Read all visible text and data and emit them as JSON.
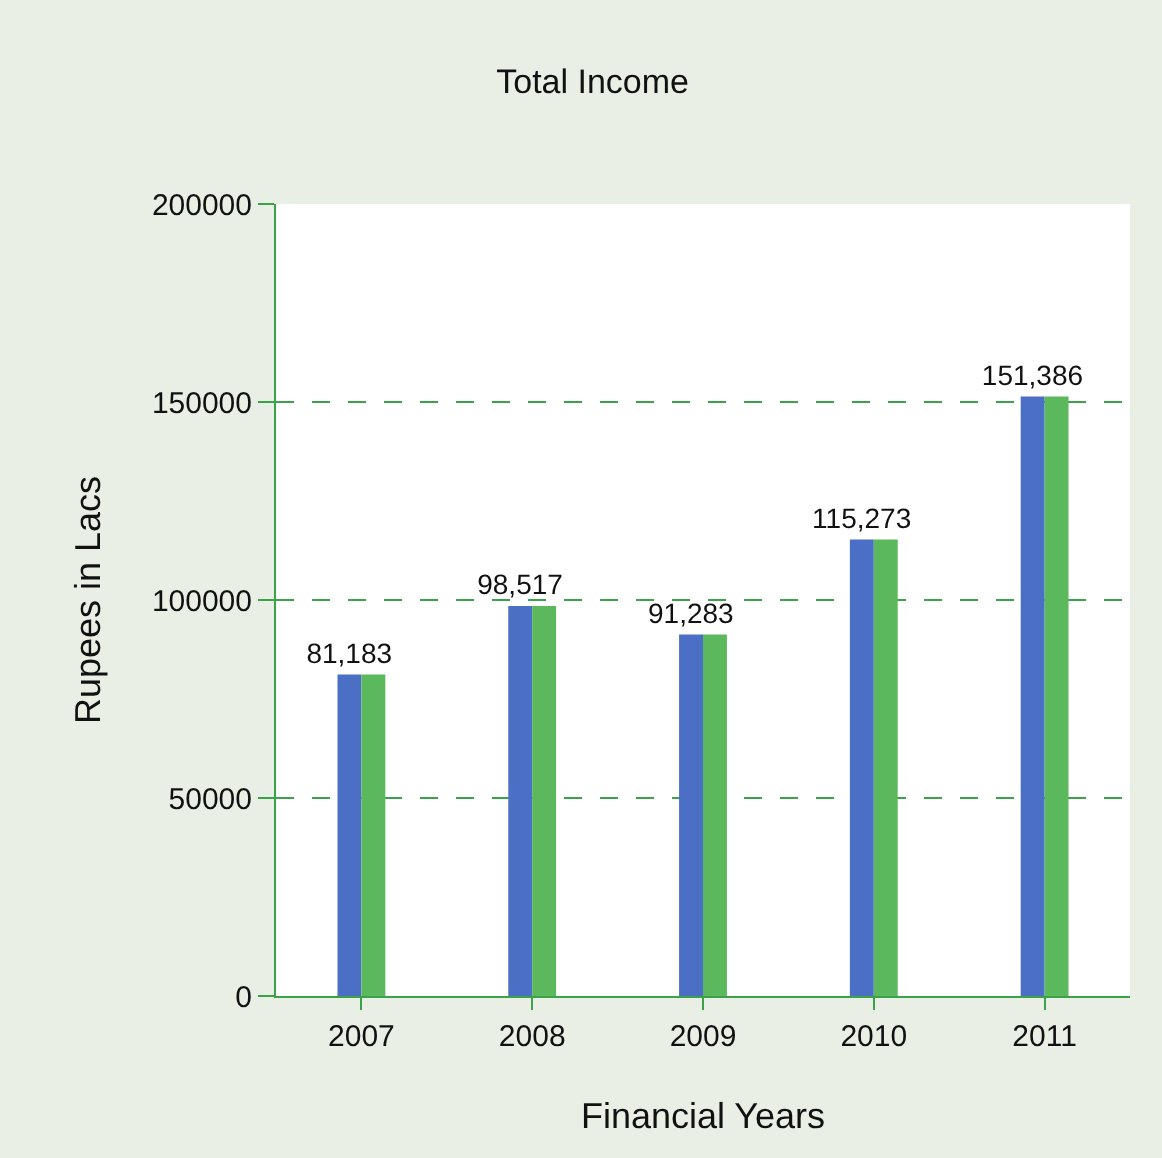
{
  "chart_data": {
    "type": "bar",
    "title": "Total Income",
    "xlabel": "Financial Years",
    "ylabel": "Rupees in Lacs",
    "categories": [
      "2007",
      "2008",
      "2009",
      "2010",
      "2011"
    ],
    "series": [
      {
        "color": "#4a6fc4",
        "values": [
          81183,
          98517,
          91283,
          115273,
          151386
        ],
        "value_labels": [
          "81,183",
          "98,517",
          "91,283",
          "115,273",
          "151,386"
        ]
      },
      {
        "color": "#5cb85c",
        "values": [
          81183,
          98517,
          91283,
          115273,
          151386
        ]
      }
    ],
    "ylim": [
      0,
      200000
    ],
    "yticks": [
      0,
      50000,
      100000,
      150000,
      200000
    ],
    "grid": "y"
  }
}
